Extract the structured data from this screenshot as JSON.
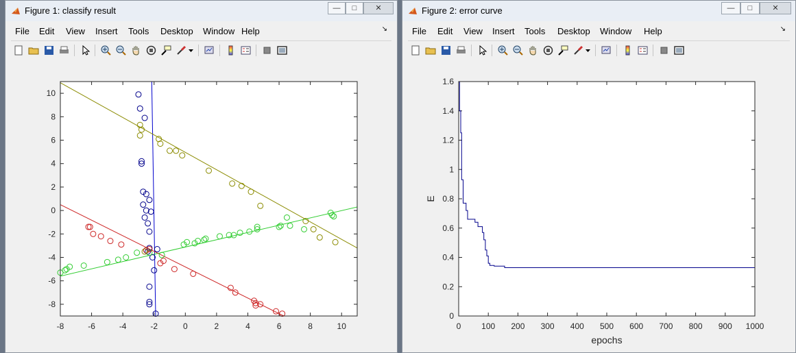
{
  "windows": [
    {
      "title": "Figure 1: classify result",
      "menu": [
        "File",
        "Edit",
        "View",
        "Insert",
        "Tools",
        "Desktop",
        "Window",
        "Help"
      ],
      "toolbar_icons": [
        "new-figure-icon",
        "open-file-icon",
        "save-icon",
        "print-icon",
        "pointer-icon",
        "zoom-in-icon",
        "zoom-out-icon",
        "pan-icon",
        "rotate-3d-icon",
        "data-cursor-icon",
        "brush-icon",
        "brush-dropdown-icon",
        "link-plot-icon",
        "colorbar-icon",
        "legend-icon",
        "hide-plot-tools-icon",
        "show-plot-tools-icon"
      ]
    },
    {
      "title": "Figure 2: error curve",
      "menu": [
        "File",
        "Edit",
        "View",
        "Insert",
        "Tools",
        "Desktop",
        "Window",
        "Help"
      ],
      "toolbar_icons": [
        "new-figure-icon",
        "open-file-icon",
        "save-icon",
        "print-icon",
        "pointer-icon",
        "zoom-in-icon",
        "zoom-out-icon",
        "pan-icon",
        "rotate-3d-icon",
        "data-cursor-icon",
        "brush-icon",
        "brush-dropdown-icon",
        "link-plot-icon",
        "colorbar-icon",
        "legend-icon",
        "hide-plot-tools-icon",
        "show-plot-tools-icon"
      ]
    }
  ],
  "window_controls": {
    "minimize": "—",
    "maximize": "□",
    "close": "✕"
  },
  "chart_data": [
    {
      "type": "scatter",
      "title": "",
      "xlabel": "",
      "ylabel": "",
      "xlim": [
        -8,
        11
      ],
      "ylim": [
        -9,
        11
      ],
      "xticks": [
        "-8",
        "-6",
        "-4",
        "-2",
        "0",
        "2",
        "4",
        "6",
        "8",
        "10"
      ],
      "yticks": [
        "-8",
        "-6",
        "-4",
        "-2",
        "0",
        "2",
        "4",
        "6",
        "8",
        "10"
      ],
      "grid": false,
      "series": [
        {
          "color": "#00008b",
          "points": [
            [
              -3,
              9.9
            ],
            [
              -2.9,
              8.7
            ],
            [
              -2.6,
              7.9
            ],
            [
              -2.8,
              4.2
            ],
            [
              -2.8,
              4
            ],
            [
              -2.7,
              1.6
            ],
            [
              -2.5,
              1.4
            ],
            [
              -2.3,
              0.9
            ],
            [
              -2.7,
              0.5
            ],
            [
              -2.5,
              0
            ],
            [
              -2.2,
              -0.1
            ],
            [
              -2.6,
              -0.6
            ],
            [
              -2.4,
              -1.1
            ],
            [
              -2.3,
              -1.8
            ],
            [
              -2.3,
              -3.2
            ],
            [
              -1.8,
              -3.3
            ],
            [
              -2.4,
              -3.5
            ],
            [
              -2.1,
              -4
            ],
            [
              -2,
              -5.1
            ],
            [
              -2.3,
              -6.5
            ],
            [
              -2.3,
              -7.8
            ],
            [
              -2.3,
              -8
            ],
            [
              -1.9,
              -8.8
            ]
          ]
        },
        {
          "color": "#8b8b00",
          "points": [
            [
              -2.9,
              7.3
            ],
            [
              -2.8,
              6.9
            ],
            [
              -2.9,
              6.4
            ],
            [
              -1.7,
              6.1
            ],
            [
              -1.6,
              5.7
            ],
            [
              -1,
              5.1
            ],
            [
              -0.6,
              5.1
            ],
            [
              -0.2,
              4.7
            ],
            [
              1.5,
              3.4
            ],
            [
              3,
              2.3
            ],
            [
              3.6,
              2.1
            ],
            [
              4.2,
              1.6
            ],
            [
              4.8,
              0.4
            ],
            [
              7.7,
              -0.9
            ],
            [
              8.2,
              -1.6
            ],
            [
              8.6,
              -2.3
            ],
            [
              9.6,
              -2.7
            ],
            [
              -2.6,
              -3.5
            ]
          ]
        },
        {
          "color": "#32cd32",
          "points": [
            [
              -8,
              -5.3
            ],
            [
              -7.7,
              -5.1
            ],
            [
              -7.6,
              -5
            ],
            [
              -7.4,
              -4.8
            ],
            [
              -6.5,
              -4.7
            ],
            [
              -5,
              -4.4
            ],
            [
              -4.3,
              -4.2
            ],
            [
              -3.8,
              -4
            ],
            [
              -3.1,
              -3.6
            ],
            [
              -2.5,
              -3.4
            ],
            [
              -2.3,
              -3.6
            ],
            [
              -1.5,
              -3.8
            ],
            [
              -0.1,
              -2.9
            ],
            [
              0.1,
              -2.7
            ],
            [
              0.6,
              -2.8
            ],
            [
              0.8,
              -2.6
            ],
            [
              1.2,
              -2.5
            ],
            [
              1.3,
              -2.4
            ],
            [
              2.2,
              -2.2
            ],
            [
              2.8,
              -2.1
            ],
            [
              3.1,
              -2.1
            ],
            [
              3.5,
              -1.9
            ],
            [
              4.1,
              -1.8
            ],
            [
              4.6,
              -1.6
            ],
            [
              4.6,
              -1.4
            ],
            [
              6,
              -1.4
            ],
            [
              6.1,
              -1.3
            ],
            [
              6.5,
              -0.6
            ],
            [
              6.7,
              -1.3
            ],
            [
              7.6,
              -1.6
            ],
            [
              9.3,
              -0.2
            ],
            [
              9.4,
              -0.4
            ],
            [
              9.5,
              -0.5
            ]
          ]
        },
        {
          "color": "#cd2626",
          "points": [
            [
              -6.2,
              -1.4
            ],
            [
              -6.1,
              -1.4
            ],
            [
              -5.9,
              -2
            ],
            [
              -5.4,
              -2.2
            ],
            [
              -4.8,
              -2.6
            ],
            [
              -4.1,
              -2.9
            ],
            [
              -2.5,
              -3.4
            ],
            [
              -2.3,
              -3.3
            ],
            [
              -1.4,
              -4.3
            ],
            [
              -1.6,
              -4.5
            ],
            [
              -0.7,
              -5
            ],
            [
              0.5,
              -5.4
            ],
            [
              2.9,
              -6.6
            ],
            [
              3.2,
              -7
            ],
            [
              4.4,
              -7.7
            ],
            [
              4.5,
              -7.9
            ],
            [
              4.5,
              -8.1
            ],
            [
              4.8,
              -8
            ],
            [
              5.8,
              -8.6
            ],
            [
              6.2,
              -8.8
            ]
          ]
        }
      ],
      "lines": [
        {
          "color": "#0000cd",
          "from": [
            -2.15,
            11
          ],
          "to": [
            -1.9,
            -9
          ]
        },
        {
          "color": "#8b8b00",
          "from": [
            -8,
            10.9
          ],
          "to": [
            11,
            -3.2
          ]
        },
        {
          "color": "#32cd32",
          "from": [
            -8,
            -5.6
          ],
          "to": [
            11,
            0.3
          ]
        },
        {
          "color": "#cd2626",
          "from": [
            -8,
            0.5
          ],
          "to": [
            6.3,
            -9
          ]
        }
      ]
    },
    {
      "type": "line",
      "title": "",
      "xlabel": "epochs",
      "ylabel": "E",
      "xlim": [
        0,
        1000
      ],
      "ylim": [
        0,
        1.6
      ],
      "xticks": [
        "0",
        "100",
        "200",
        "300",
        "400",
        "500",
        "600",
        "700",
        "800",
        "900",
        "1000"
      ],
      "yticks": [
        "0",
        "0.2",
        "0.4",
        "0.6",
        "0.8",
        "1",
        "1.2",
        "1.4",
        "1.6"
      ],
      "grid": false,
      "series": [
        {
          "color": "#00008b",
          "x": [
            0,
            3,
            3,
            7,
            7,
            10,
            10,
            15,
            15,
            25,
            25,
            30,
            30,
            55,
            55,
            65,
            65,
            80,
            80,
            85,
            85,
            90,
            90,
            95,
            95,
            100,
            100,
            105,
            105,
            120,
            120,
            155,
            155,
            1000
          ],
          "y": [
            1.6,
            1.6,
            1.4,
            1.4,
            1.25,
            1.25,
            0.93,
            0.93,
            0.77,
            0.77,
            0.72,
            0.72,
            0.66,
            0.66,
            0.64,
            0.64,
            0.61,
            0.61,
            0.57,
            0.57,
            0.52,
            0.52,
            0.45,
            0.45,
            0.41,
            0.41,
            0.36,
            0.36,
            0.345,
            0.345,
            0.34,
            0.34,
            0.33,
            0.33
          ]
        }
      ]
    }
  ]
}
